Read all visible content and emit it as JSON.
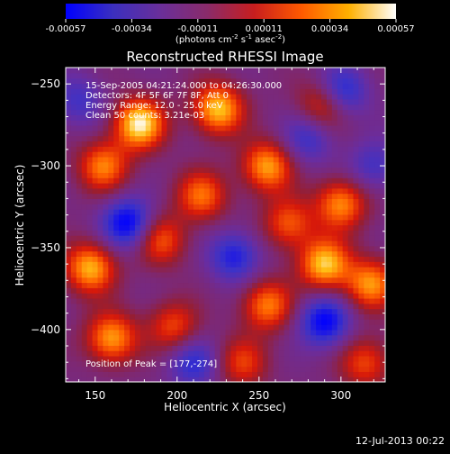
{
  "chart_data": {
    "type": "heatmap",
    "title": "Reconstructed RHESSI Image",
    "xlabel": "Heliocentric X (arcsec)",
    "ylabel": "Heliocentric Y (arcsec)",
    "xlim": [
      132,
      327
    ],
    "ylim": [
      -432,
      -240
    ],
    "xticks": [
      150,
      200,
      250,
      300
    ],
    "yticks": [
      -250,
      -300,
      -350,
      -400
    ],
    "colorbar": {
      "ticks": [
        "-0.00057",
        "-0.00034",
        "-0.00011",
        "0.00011",
        "0.00034",
        "0.00057"
      ],
      "unit_label_parts": [
        "(photons cm",
        "-2",
        " s",
        "-1",
        " asec",
        "-2",
        ")"
      ],
      "range": [
        -0.00057,
        0.00057
      ],
      "colors": [
        "#0000ff",
        "#3b2fbf",
        "#6a2f9a",
        "#8a2b6a",
        "#c81e1e",
        "#ff5a00",
        "#ffb000",
        "#ffffff"
      ]
    },
    "annotations": [
      "15-Sep-2005 04:21:24.000 to 04:26:30.000",
      "Detectors: 4F 5F 6F 7F 8F, Att 0",
      "Energy Range: 12.0 - 25.0 keV",
      "Clean    50 counts: 3.21e-03"
    ],
    "peak_label": "Position of Peak = [177,-274]",
    "peak": [
      177,
      -274
    ],
    "source_peaks": [
      {
        "x": 177,
        "y": -274,
        "v": 1.0
      },
      {
        "x": 155,
        "y": -300,
        "v": 0.7
      },
      {
        "x": 147,
        "y": -362,
        "v": 0.85
      },
      {
        "x": 190,
        "y": -345,
        "v": 0.6
      },
      {
        "x": 160,
        "y": -405,
        "v": 0.8
      },
      {
        "x": 225,
        "y": -265,
        "v": 0.9
      },
      {
        "x": 215,
        "y": -318,
        "v": 0.65
      },
      {
        "x": 198,
        "y": -398,
        "v": 0.55
      },
      {
        "x": 255,
        "y": -300,
        "v": 0.8
      },
      {
        "x": 268,
        "y": -335,
        "v": 0.6
      },
      {
        "x": 255,
        "y": -385,
        "v": 0.7
      },
      {
        "x": 290,
        "y": -262,
        "v": 0.65
      },
      {
        "x": 300,
        "y": -323,
        "v": 0.75
      },
      {
        "x": 290,
        "y": -360,
        "v": 0.9
      },
      {
        "x": 318,
        "y": -372,
        "v": 0.75
      },
      {
        "x": 315,
        "y": -420,
        "v": 0.55
      },
      {
        "x": 240,
        "y": -420,
        "v": 0.5
      }
    ],
    "source_troughs": [
      {
        "x": 170,
        "y": -335,
        "v": -0.8
      },
      {
        "x": 300,
        "y": -255,
        "v": -0.7
      },
      {
        "x": 235,
        "y": -355,
        "v": -0.6
      },
      {
        "x": 290,
        "y": -395,
        "v": -0.75
      },
      {
        "x": 140,
        "y": -260,
        "v": -0.4
      },
      {
        "x": 210,
        "y": -420,
        "v": -0.5
      },
      {
        "x": 280,
        "y": -283,
        "v": -0.45
      },
      {
        "x": 320,
        "y": -300,
        "v": -0.4
      }
    ]
  },
  "footer": {
    "timestamp": "12-Jul-2013 00:22"
  }
}
